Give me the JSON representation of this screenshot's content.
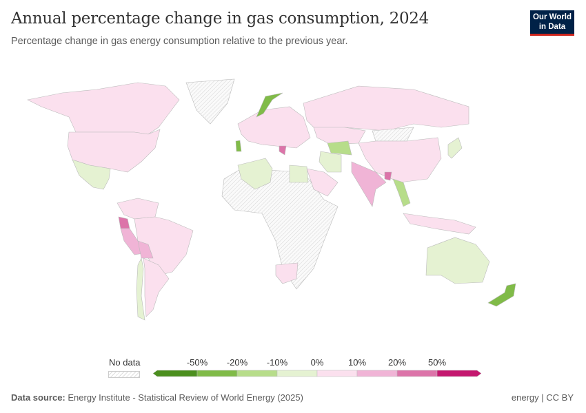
{
  "header": {
    "title": "Annual percentage change in gas consumption, 2024",
    "subtitle": "Percentage change in gas energy consumption relative to the previous year."
  },
  "logo": {
    "line1": "Our World",
    "line2": "in Data"
  },
  "legend": {
    "no_data_label": "No data",
    "tick_labels": [
      "-50%",
      "-20%",
      "-10%",
      "0%",
      "10%",
      "20%",
      "50%"
    ],
    "bins": [
      {
        "range": "< -50%",
        "color": "#4c8f1f"
      },
      {
        "range": "-50% to -20%",
        "color": "#80bb48"
      },
      {
        "range": "-20% to -10%",
        "color": "#b7dd8a"
      },
      {
        "range": "-10% to 0%",
        "color": "#e5f2d2"
      },
      {
        "range": "0% to 10%",
        "color": "#fbe0ee"
      },
      {
        "range": "10% to 20%",
        "color": "#f0b4d6"
      },
      {
        "range": "20% to 50%",
        "color": "#dc74a9"
      },
      {
        "range": "> 50%",
        "color": "#c4186f"
      }
    ],
    "no_data_color": "#eeeeee"
  },
  "map_regions": [
    {
      "name": "Canada",
      "bin": 4
    },
    {
      "name": "United States",
      "bin": 4
    },
    {
      "name": "Mexico",
      "bin": 3
    },
    {
      "name": "Greenland",
      "bin": null
    },
    {
      "name": "Colombia / Venezuela",
      "bin": 4
    },
    {
      "name": "Brazil",
      "bin": 4
    },
    {
      "name": "Ecuador",
      "bin": 6
    },
    {
      "name": "Peru",
      "bin": 5
    },
    {
      "name": "Bolivia",
      "bin": 5
    },
    {
      "name": "Chile",
      "bin": 3
    },
    {
      "name": "Argentina",
      "bin": 4
    },
    {
      "name": "Africa (most)",
      "bin": null
    },
    {
      "name": "Algeria",
      "bin": 3
    },
    {
      "name": "Egypt",
      "bin": 3
    },
    {
      "name": "South Africa",
      "bin": 4
    },
    {
      "name": "Europe",
      "bin": 4
    },
    {
      "name": "Norway",
      "bin": 1
    },
    {
      "name": "Portugal",
      "bin": 1
    },
    {
      "name": "Greece",
      "bin": 6
    },
    {
      "name": "Russia",
      "bin": 4
    },
    {
      "name": "Kazakhstan",
      "bin": 4
    },
    {
      "name": "Uzbekistan / Turkmenistan",
      "bin": 2
    },
    {
      "name": "Mongolia",
      "bin": null
    },
    {
      "name": "China",
      "bin": 4
    },
    {
      "name": "Iran",
      "bin": 3
    },
    {
      "name": "Saudi Arabia",
      "bin": 4
    },
    {
      "name": "India",
      "bin": 5
    },
    {
      "name": "Bangladesh",
      "bin": 6
    },
    {
      "name": "Vietnam / Thailand",
      "bin": 2
    },
    {
      "name": "Japan",
      "bin": 3
    },
    {
      "name": "Indonesia / Malaysia",
      "bin": 4
    },
    {
      "name": "Australia",
      "bin": 3
    },
    {
      "name": "New Zealand",
      "bin": 1
    }
  ],
  "footer": {
    "source_label": "Data source:",
    "source": "Energy Institute - Statistical Review of World Energy (2025)",
    "right": "energy | CC BY"
  }
}
